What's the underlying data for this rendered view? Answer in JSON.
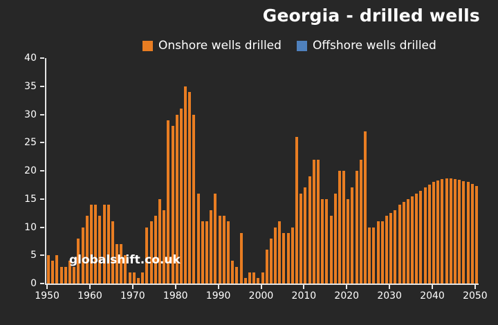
{
  "title": "Georgia - drilled wells",
  "watermark": "globalshift.co.uk",
  "colors": {
    "background": "#272727",
    "onshore_bar": "#e87d22",
    "offshore_swatch": "#4f81bd",
    "axis": "#e6e6e6",
    "text": "#ffffff"
  },
  "legend": {
    "onshore_label": "Onshore wells drilled",
    "offshore_label": "Offshore wells drilled"
  },
  "chart_data": {
    "type": "bar",
    "title": "Georgia - drilled wells",
    "xlabel": "",
    "ylabel": "",
    "ylim": [
      0,
      40
    ],
    "y_ticks": [
      0,
      5,
      10,
      15,
      20,
      25,
      30,
      35,
      40
    ],
    "x_ticks": [
      1950,
      1960,
      1970,
      1980,
      1990,
      2000,
      2010,
      2020,
      2030,
      2040,
      2050
    ],
    "x_range": [
      1950,
      2050
    ],
    "grid": false,
    "legend_position": "top",
    "series": [
      {
        "name": "Onshore wells drilled",
        "color": "#e87d22",
        "values": [
          5,
          4,
          5,
          3,
          3,
          4,
          3,
          8,
          10,
          12,
          14,
          14,
          12,
          14,
          14,
          11,
          7,
          7,
          5,
          2,
          2,
          1,
          2,
          10,
          11,
          12,
          15,
          13,
          29,
          28,
          30,
          31,
          35,
          34,
          30,
          16,
          11,
          11,
          13,
          16,
          12,
          12,
          11,
          4,
          3,
          9,
          1,
          2,
          2,
          1,
          2,
          6,
          8,
          10,
          11,
          9,
          9,
          10,
          26,
          16,
          17,
          19,
          22,
          22,
          15,
          15,
          12,
          16,
          20,
          20,
          15,
          17,
          20,
          22,
          27,
          10,
          10,
          11,
          11,
          12,
          12.5,
          13,
          14,
          14.5,
          15,
          15.5,
          16,
          16.5,
          17,
          17.5,
          18,
          18.3,
          18.5,
          18.6,
          18.6,
          18.5,
          18.4,
          18.2,
          18,
          17.7,
          17.3
        ]
      },
      {
        "name": "Offshore wells drilled",
        "color": "#4f81bd",
        "values": [
          0,
          0,
          0,
          0,
          0,
          0,
          0,
          0,
          0,
          0,
          0,
          0,
          0,
          0,
          0,
          0,
          0,
          0,
          0,
          0,
          0,
          0,
          0,
          0,
          0,
          0,
          0,
          0,
          0,
          0,
          0,
          0,
          0,
          0,
          0,
          0,
          0,
          0,
          0,
          0,
          0,
          0,
          0,
          0,
          0,
          0,
          0,
          0,
          0,
          0,
          0,
          0,
          0,
          0,
          0,
          0,
          0,
          0,
          0,
          0,
          0,
          0,
          0,
          0,
          0,
          0,
          0,
          0,
          0,
          0,
          0,
          0,
          0,
          0,
          0,
          0,
          0,
          0,
          0,
          0,
          0,
          0,
          0,
          0,
          0,
          0,
          0,
          0,
          0,
          0,
          0,
          0,
          0,
          0,
          0,
          0,
          0,
          0,
          0,
          0,
          0
        ]
      }
    ]
  }
}
